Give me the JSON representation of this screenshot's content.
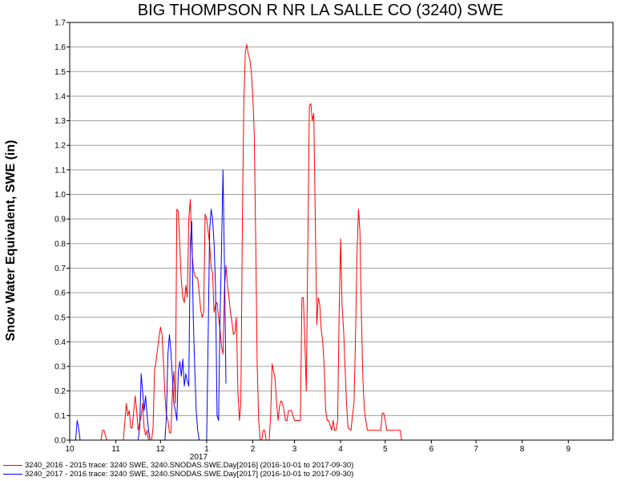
{
  "chart_data": {
    "type": "line",
    "title": "BIG THOMPSON R NR LA SALLE CO (3240) SWE",
    "ylabel": "Snow Water Equivalent, SWE (in)",
    "xlabel": "",
    "year_label": "2017",
    "ylim": [
      0,
      1.7
    ],
    "xlim": [
      "2016-10-01",
      "2017-09-30"
    ],
    "y_ticks": [
      "0.0",
      "0.1",
      "0.2",
      "0.3",
      "0.4",
      "0.5",
      "0.6",
      "0.7",
      "0.8",
      "0.9",
      "1.0",
      "1.1",
      "1.2",
      "1.3",
      "1.4",
      "1.5",
      "1.6",
      "1.7"
    ],
    "x_tick_labels": [
      "10",
      "11",
      "12",
      "1",
      "2",
      "3",
      "4",
      "5",
      "6",
      "7",
      "8",
      "9"
    ],
    "grid": true,
    "legend_position": "bottom-left",
    "series": [
      {
        "name": "3240_2016 - 2015 trace: 3240 SWE, 3240.SNODAS.SWE.Day[2016] (2016-10-01 to 2017-09-30)",
        "color": "#ff0000",
        "points": [
          [
            "2016-10-01",
            0
          ],
          [
            "2016-10-22",
            0
          ],
          [
            "2016-10-23",
            0.04
          ],
          [
            "2016-10-24",
            0.04
          ],
          [
            "2016-10-26",
            0
          ],
          [
            "2016-11-06",
            0
          ],
          [
            "2016-11-07",
            0.07
          ],
          [
            "2016-11-08",
            0.15
          ],
          [
            "2016-11-09",
            0.1
          ],
          [
            "2016-11-10",
            0.12
          ],
          [
            "2016-11-11",
            0.05
          ],
          [
            "2016-11-12",
            0.05
          ],
          [
            "2016-11-14",
            0.18
          ],
          [
            "2016-11-15",
            0.12
          ],
          [
            "2016-11-16",
            0.04
          ],
          [
            "2016-11-18",
            0.1
          ],
          [
            "2016-11-19",
            0.15
          ],
          [
            "2016-11-20",
            0.05
          ],
          [
            "2016-11-21",
            0.02
          ],
          [
            "2016-11-22",
            0.04
          ],
          [
            "2016-11-23",
            0
          ],
          [
            "2016-11-25",
            0
          ],
          [
            "2016-11-26",
            0.05
          ],
          [
            "2016-11-27",
            0.28
          ],
          [
            "2016-11-28",
            0.32
          ],
          [
            "2016-11-30",
            0.42
          ],
          [
            "2016-12-01",
            0.46
          ],
          [
            "2016-12-02",
            0.43
          ],
          [
            "2016-12-03",
            0.32
          ],
          [
            "2016-12-04",
            0.18
          ],
          [
            "2016-12-05",
            0.1
          ],
          [
            "2016-12-06",
            0.08
          ],
          [
            "2016-12-07",
            0.03
          ],
          [
            "2016-12-08",
            0.03
          ],
          [
            "2016-12-09",
            0.2
          ],
          [
            "2016-12-10",
            0.28
          ],
          [
            "2016-12-11",
            0.15
          ],
          [
            "2016-12-12",
            0.94
          ],
          [
            "2016-12-13",
            0.93
          ],
          [
            "2016-12-14",
            0.78
          ],
          [
            "2016-12-15",
            0.65
          ],
          [
            "2016-12-16",
            0.58
          ],
          [
            "2016-12-17",
            0.56
          ],
          [
            "2016-12-18",
            0.63
          ],
          [
            "2016-12-19",
            0.58
          ],
          [
            "2016-12-20",
            0.9
          ],
          [
            "2016-12-21",
            0.98
          ],
          [
            "2016-12-22",
            0.78
          ],
          [
            "2016-12-23",
            0.7
          ],
          [
            "2016-12-24",
            0.67
          ],
          [
            "2016-12-25",
            0.66
          ],
          [
            "2016-12-26",
            0.66
          ],
          [
            "2016-12-27",
            0.6
          ],
          [
            "2016-12-28",
            0.53
          ],
          [
            "2016-12-29",
            0.5
          ],
          [
            "2016-12-30",
            0.52
          ],
          [
            "2016-12-31",
            0.92
          ],
          [
            "2017-01-01",
            0.9
          ],
          [
            "2017-01-02",
            0.85
          ],
          [
            "2017-01-03",
            0.8
          ],
          [
            "2017-01-04",
            0.7
          ],
          [
            "2017-01-05",
            0.68
          ],
          [
            "2017-01-06",
            0.52
          ],
          [
            "2017-01-07",
            0.55
          ],
          [
            "2017-01-08",
            0.56
          ],
          [
            "2017-01-09",
            0.5
          ],
          [
            "2017-01-10",
            0.45
          ],
          [
            "2017-01-11",
            0.38
          ],
          [
            "2017-01-12",
            0.35
          ],
          [
            "2017-01-13",
            0.62
          ],
          [
            "2017-01-14",
            0.71
          ],
          [
            "2017-01-15",
            0.63
          ],
          [
            "2017-01-16",
            0.58
          ],
          [
            "2017-01-17",
            0.52
          ],
          [
            "2017-01-18",
            0.48
          ],
          [
            "2017-01-19",
            0.43
          ],
          [
            "2017-01-20",
            0.44
          ],
          [
            "2017-01-21",
            0.5
          ],
          [
            "2017-01-22",
            0.2
          ],
          [
            "2017-01-23",
            0.08
          ],
          [
            "2017-01-24",
            0.15
          ],
          [
            "2017-01-25",
            0.88
          ],
          [
            "2017-01-26",
            1.38
          ],
          [
            "2017-01-27",
            1.58
          ],
          [
            "2017-01-28",
            1.61
          ],
          [
            "2017-01-29",
            1.57
          ],
          [
            "2017-01-30",
            1.55
          ],
          [
            "2017-01-31",
            1.5
          ],
          [
            "2017-02-01",
            1.4
          ],
          [
            "2017-02-02",
            1.25
          ],
          [
            "2017-02-03",
            0.8
          ],
          [
            "2017-02-04",
            0.3
          ],
          [
            "2017-02-05",
            0.08
          ],
          [
            "2017-02-06",
            0
          ],
          [
            "2017-02-07",
            0
          ],
          [
            "2017-02-08",
            0.04
          ],
          [
            "2017-02-09",
            0.04
          ],
          [
            "2017-02-10",
            0
          ],
          [
            "2017-02-12",
            0
          ],
          [
            "2017-02-13",
            0.1
          ],
          [
            "2017-02-14",
            0.31
          ],
          [
            "2017-02-15",
            0.28
          ],
          [
            "2017-02-16",
            0.25
          ],
          [
            "2017-02-17",
            0.15
          ],
          [
            "2017-02-18",
            0.08
          ],
          [
            "2017-02-19",
            0.14
          ],
          [
            "2017-02-20",
            0.16
          ],
          [
            "2017-02-21",
            0.15
          ],
          [
            "2017-02-22",
            0.12
          ],
          [
            "2017-02-23",
            0.08
          ],
          [
            "2017-02-24",
            0.08
          ],
          [
            "2017-02-25",
            0.12
          ],
          [
            "2017-02-27",
            0.12
          ],
          [
            "2017-03-01",
            0.08
          ],
          [
            "2017-03-04",
            0.08
          ],
          [
            "2017-03-05",
            0.08
          ],
          [
            "2017-03-06",
            0.58
          ],
          [
            "2017-03-07",
            0.58
          ],
          [
            "2017-03-08",
            0.4
          ],
          [
            "2017-03-09",
            0.2
          ],
          [
            "2017-03-10",
            0.8
          ],
          [
            "2017-03-11",
            1.36
          ],
          [
            "2017-03-12",
            1.37
          ],
          [
            "2017-03-13",
            1.3
          ],
          [
            "2017-03-14",
            1.33
          ],
          [
            "2017-03-15",
            0.9
          ],
          [
            "2017-03-16",
            0.47
          ],
          [
            "2017-03-17",
            0.58
          ],
          [
            "2017-03-18",
            0.55
          ],
          [
            "2017-03-19",
            0.45
          ],
          [
            "2017-03-20",
            0.4
          ],
          [
            "2017-03-21",
            0.3
          ],
          [
            "2017-03-22",
            0.12
          ],
          [
            "2017-03-23",
            0.08
          ],
          [
            "2017-03-24",
            0.08
          ],
          [
            "2017-03-26",
            0.04
          ],
          [
            "2017-03-27",
            0.08
          ],
          [
            "2017-03-28",
            0.04
          ],
          [
            "2017-03-29",
            0.04
          ],
          [
            "2017-03-30",
            0.08
          ],
          [
            "2017-03-31",
            0.5
          ],
          [
            "2017-04-01",
            0.82
          ],
          [
            "2017-04-02",
            0.55
          ],
          [
            "2017-04-03",
            0.45
          ],
          [
            "2017-04-04",
            0.3
          ],
          [
            "2017-04-05",
            0.15
          ],
          [
            "2017-04-06",
            0.05
          ],
          [
            "2017-04-08",
            0.04
          ],
          [
            "2017-04-09",
            0.1
          ],
          [
            "2017-04-10",
            0.15
          ],
          [
            "2017-04-11",
            0.4
          ],
          [
            "2017-04-12",
            0.75
          ],
          [
            "2017-04-13",
            0.94
          ],
          [
            "2017-04-14",
            0.85
          ],
          [
            "2017-04-15",
            0.5
          ],
          [
            "2017-04-16",
            0.25
          ],
          [
            "2017-04-17",
            0.12
          ],
          [
            "2017-04-18",
            0.08
          ],
          [
            "2017-04-19",
            0.04
          ],
          [
            "2017-04-28",
            0.04
          ],
          [
            "2017-04-29",
            0.11
          ],
          [
            "2017-04-30",
            0.11
          ],
          [
            "2017-05-01",
            0.08
          ],
          [
            "2017-05-02",
            0.04
          ],
          [
            "2017-05-10",
            0.04
          ],
          [
            "2017-05-11",
            0.04
          ],
          [
            "2017-05-12",
            0
          ],
          [
            "2017-09-30",
            0
          ]
        ]
      },
      {
        "name": "3240_2017 - 2016 trace: 3240 SWE, 3240.SNODAS.SWE.Day[2017] (2016-10-01 to 2017-09-30)",
        "color": "#0000ff",
        "points": [
          [
            "2016-10-01",
            0
          ],
          [
            "2016-10-05",
            0
          ],
          [
            "2016-10-06",
            0.08
          ],
          [
            "2016-10-07",
            0.05
          ],
          [
            "2016-10-08",
            0
          ],
          [
            "2016-11-16",
            0
          ],
          [
            "2016-11-17",
            0.05
          ],
          [
            "2016-11-18",
            0.27
          ],
          [
            "2016-11-19",
            0.2
          ],
          [
            "2016-11-20",
            0.12
          ],
          [
            "2016-11-21",
            0.18
          ],
          [
            "2016-11-22",
            0.1
          ],
          [
            "2016-11-23",
            0.04
          ],
          [
            "2016-11-24",
            0
          ],
          [
            "2016-12-04",
            0
          ],
          [
            "2016-12-05",
            0.1
          ],
          [
            "2016-12-06",
            0.35
          ],
          [
            "2016-12-07",
            0.43
          ],
          [
            "2016-12-08",
            0.36
          ],
          [
            "2016-12-09",
            0.25
          ],
          [
            "2016-12-10",
            0.15
          ],
          [
            "2016-12-11",
            0.12
          ],
          [
            "2016-12-12",
            0.08
          ],
          [
            "2016-12-13",
            0.28
          ],
          [
            "2016-12-14",
            0.32
          ],
          [
            "2016-12-15",
            0.26
          ],
          [
            "2016-12-16",
            0.33
          ],
          [
            "2016-12-17",
            0.22
          ],
          [
            "2016-12-18",
            0.27
          ],
          [
            "2016-12-19",
            0.24
          ],
          [
            "2016-12-20",
            0.22
          ],
          [
            "2016-12-21",
            0.8
          ],
          [
            "2016-12-22",
            0.89
          ],
          [
            "2016-12-23",
            0.5
          ],
          [
            "2016-12-24",
            0.3
          ],
          [
            "2016-12-25",
            0.12
          ],
          [
            "2016-12-26",
            0.04
          ],
          [
            "2016-12-27",
            0
          ],
          [
            "2017-01-01",
            0
          ],
          [
            "2017-01-02",
            0.42
          ],
          [
            "2017-01-03",
            0.85
          ],
          [
            "2017-01-04",
            0.94
          ],
          [
            "2017-01-05",
            0.9
          ],
          [
            "2017-01-06",
            0.8
          ],
          [
            "2017-01-07",
            0.62
          ],
          [
            "2017-01-08",
            0.1
          ],
          [
            "2017-01-09",
            0.08
          ],
          [
            "2017-01-10",
            0.5
          ],
          [
            "2017-01-11",
            0.78
          ],
          [
            "2017-01-12",
            1.1
          ],
          [
            "2017-01-13",
            0.7
          ],
          [
            "2017-01-14",
            0.23
          ]
        ]
      }
    ]
  }
}
